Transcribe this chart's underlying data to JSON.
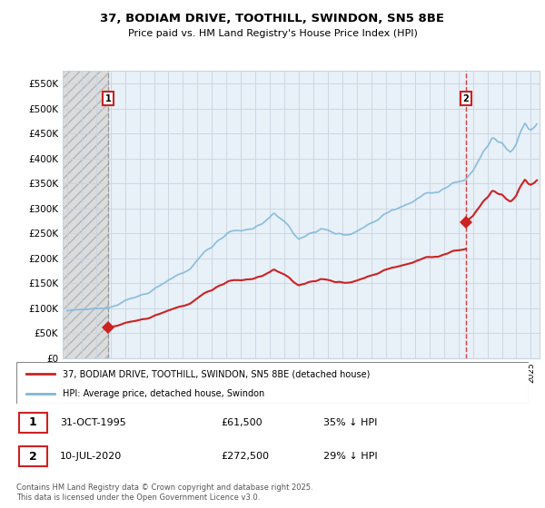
{
  "title": "37, BODIAM DRIVE, TOOTHILL, SWINDON, SN5 8BE",
  "subtitle": "Price paid vs. HM Land Registry's House Price Index (HPI)",
  "ylim": [
    0,
    575000
  ],
  "yticks": [
    0,
    50000,
    100000,
    150000,
    200000,
    250000,
    300000,
    350000,
    400000,
    450000,
    500000,
    550000
  ],
  "sale1_date_num": 1995.83,
  "sale1_price": 61500,
  "sale2_date_num": 2020.53,
  "sale2_price": 272500,
  "hpi_color": "#7eb8d9",
  "price_color": "#cc2222",
  "legend_label_price": "37, BODIAM DRIVE, TOOTHILL, SWINDON, SN5 8BE (detached house)",
  "legend_label_hpi": "HPI: Average price, detached house, Swindon",
  "table_row1": [
    "1",
    "31-OCT-1995",
    "£61,500",
    "35% ↓ HPI"
  ],
  "table_row2": [
    "2",
    "10-JUL-2020",
    "£272,500",
    "29% ↓ HPI"
  ],
  "footer": "Contains HM Land Registry data © Crown copyright and database right 2025.\nThis data is licensed under the Open Government Licence v3.0.",
  "background_color": "#ffffff",
  "chart_bg_color": "#e8f0f8",
  "grid_color": "#c8d4e0"
}
